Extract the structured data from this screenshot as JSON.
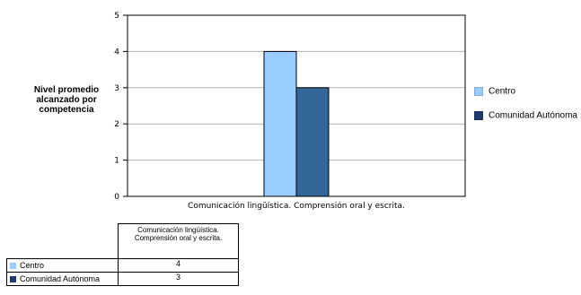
{
  "chart_data": {
    "type": "bar",
    "categories": [
      "Comunicación lingüística. Comprensión oral y escrita."
    ],
    "series": [
      {
        "name": "Centro",
        "values": [
          4
        ],
        "color": "#99ccff"
      },
      {
        "name": "Comunidad Autónoma",
        "values": [
          3
        ],
        "color": "#336699"
      }
    ],
    "ylabel": "Nivel promedio alcanzado por competencia",
    "ylim": [
      0,
      5
    ],
    "yticks": [
      "0",
      "1",
      "2",
      "3",
      "4",
      "5"
    ],
    "grid": true,
    "legend": "right"
  },
  "table": {
    "header": "Comunicación lingüística. Comprensión oral y escrita.",
    "rows": [
      {
        "label": "Centro",
        "value": "4",
        "color": "#99ccff"
      },
      {
        "label": "Comunidad Autónoma",
        "value": "3",
        "color": "#336699"
      }
    ]
  }
}
